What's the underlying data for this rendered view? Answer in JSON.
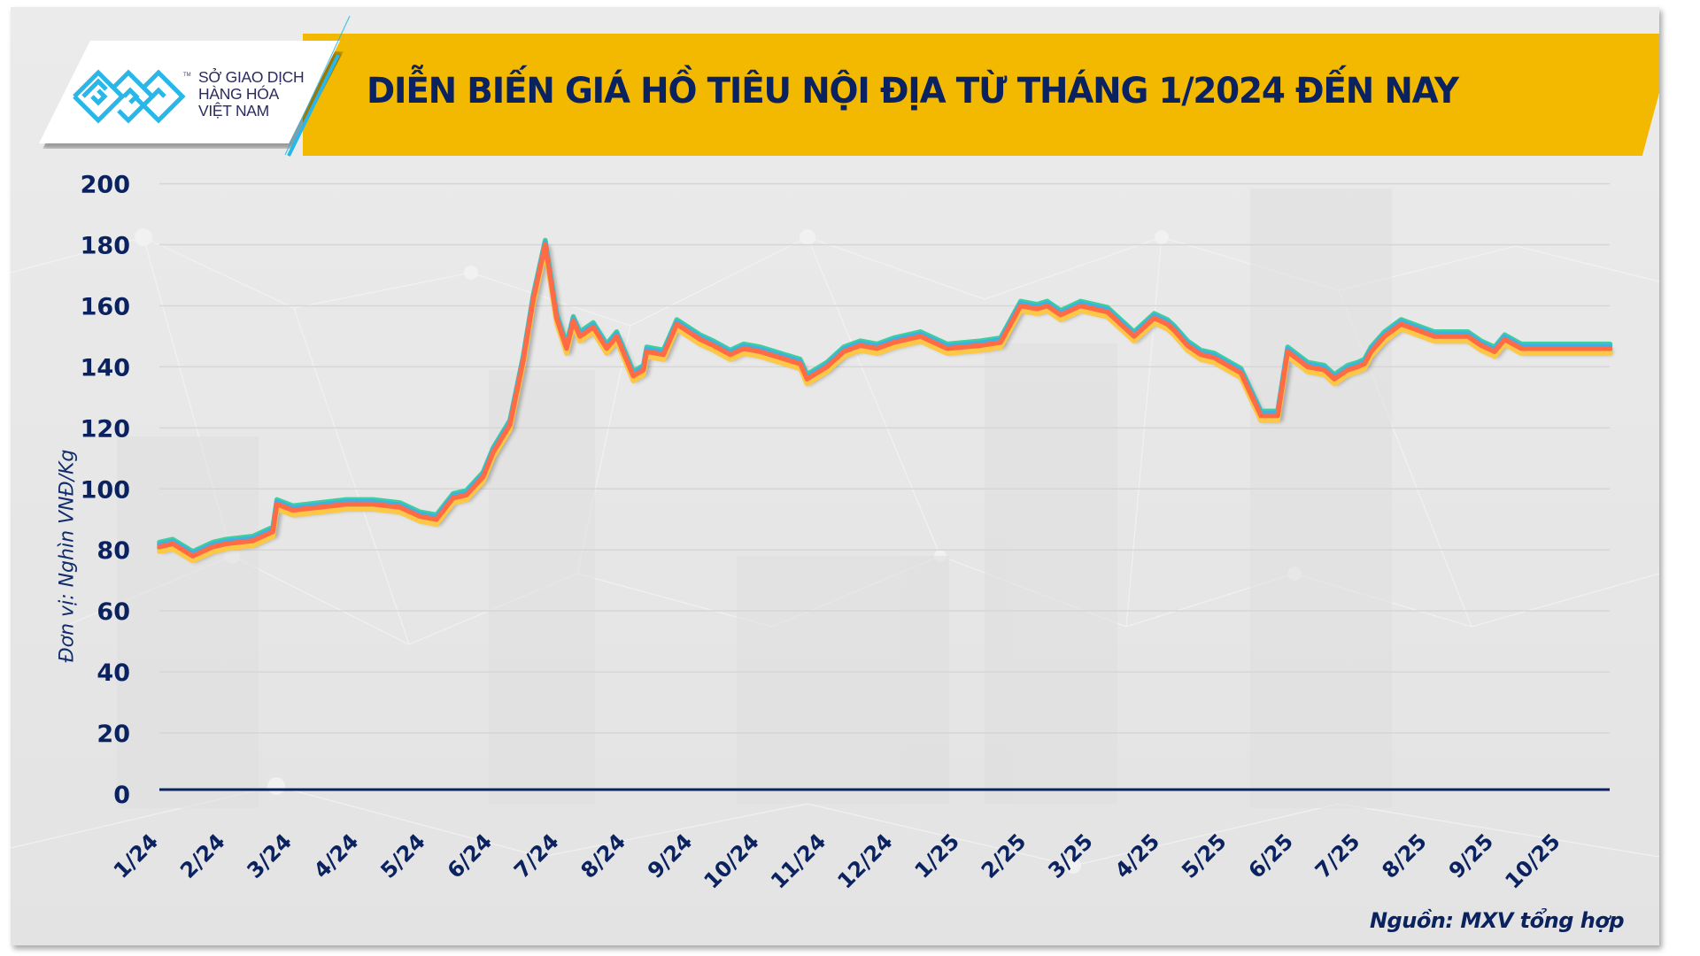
{
  "header": {
    "logo_lines": [
      "SỞ GIAO DỊCH",
      "HÀNG HÓA",
      "VIỆT NAM"
    ],
    "logo_tm": "TM",
    "title": "DIỄN BIẾN GIÁ HỒ TIÊU NỘI ĐỊA TỪ THÁNG 1/2024 ĐẾN NAY"
  },
  "footer": {
    "source": "Nguồn: MXV tổng hợp"
  },
  "colors": {
    "banner": "#f2b900",
    "title_text": "#0b2260",
    "axis": "#0b2260",
    "logo_blue": "#29b6e8",
    "gridline": "#d6d6d6"
  },
  "chart_data": {
    "type": "line",
    "title": "DIỄN BIẾN GIÁ HỒ TIÊU NỘI ĐỊA TỪ THÁNG 1/2024 ĐẾN NAY",
    "xlabel": "",
    "ylabel": "Đơn vị: Nghìn VNĐ/Kg",
    "ylim": [
      0,
      200
    ],
    "yticks": [
      0,
      20,
      40,
      60,
      80,
      100,
      120,
      140,
      160,
      180,
      200
    ],
    "grid": true,
    "legend": "none",
    "categories": [
      "1/24",
      "2/24",
      "3/24",
      "4/24",
      "5/24",
      "6/24",
      "7/24",
      "8/24",
      "9/24",
      "10/24",
      "11/24",
      "12/24",
      "1/25",
      "2/25",
      "3/25",
      "4/25",
      "5/25",
      "6/25",
      "7/25",
      "8/25",
      "9/25",
      "10/25"
    ],
    "x_range_months": [
      0,
      21.73
    ],
    "x": [
      0,
      0.2,
      0.35,
      0.5,
      0.8,
      1.0,
      1.4,
      1.7,
      1.76,
      2.0,
      2.4,
      2.8,
      3.2,
      3.6,
      3.9,
      4.15,
      4.4,
      4.6,
      4.85,
      5.0,
      5.25,
      5.45,
      5.6,
      5.78,
      5.95,
      6.1,
      6.2,
      6.3,
      6.5,
      6.7,
      6.85,
      7.1,
      7.25,
      7.3,
      7.55,
      7.75,
      8.1,
      8.3,
      8.55,
      8.75,
      9.0,
      9.6,
      9.7,
      10.0,
      10.25,
      10.5,
      10.75,
      11.0,
      11.4,
      11.8,
      12.3,
      12.6,
      12.9,
      13.15,
      13.3,
      13.5,
      13.8,
      14.2,
      14.6,
      14.9,
      15.1,
      15.2,
      15.4,
      15.6,
      15.8,
      16.2,
      16.5,
      16.75,
      16.9,
      17.2,
      17.45,
      17.6,
      17.8,
      17.95,
      18.05,
      18.15,
      18.35,
      18.6,
      18.85,
      19.1,
      19.35,
      19.6,
      19.8,
      20.0,
      20.15,
      20.4,
      20.8,
      21.0,
      21.2,
      21.4,
      21.73
    ],
    "series": [
      {
        "name": "series-teal",
        "color": "#3ecf9f",
        "offset": 1.5
      },
      {
        "name": "series-green",
        "color": "#8ed05a",
        "offset": -0.5
      },
      {
        "name": "series-blue",
        "color": "#3fb0e6",
        "offset": 0.8
      },
      {
        "name": "series-yellow",
        "color": "#fcc845",
        "offset": -1.6
      },
      {
        "name": "series-orange",
        "color": "#ff6b45",
        "offset": 0,
        "values": [
          81,
          82,
          80,
          78,
          81,
          82,
          83,
          86,
          95,
          93,
          94,
          95,
          95,
          94,
          91,
          90,
          97,
          98,
          104,
          112,
          121,
          142,
          162,
          180,
          156,
          146,
          155,
          150,
          153,
          146,
          150,
          137,
          139,
          145,
          144,
          154,
          149,
          147,
          144,
          146,
          145,
          141,
          136,
          140,
          145,
          147,
          146,
          148,
          150,
          146,
          147,
          148,
          160,
          159,
          160,
          157,
          160,
          158,
          150,
          156,
          154,
          152,
          147,
          144,
          143,
          138,
          124,
          124,
          145,
          140,
          139,
          136,
          139,
          140,
          141,
          145,
          150,
          154,
          152,
          150,
          150,
          150,
          147,
          145,
          149,
          146,
          146,
          146,
          146,
          146,
          146
        ]
      }
    ]
  },
  "axis": {
    "y_tick_labels": [
      "200",
      "180",
      "160",
      "140",
      "120",
      "100",
      "80",
      "60",
      "40",
      "20",
      "0"
    ]
  }
}
